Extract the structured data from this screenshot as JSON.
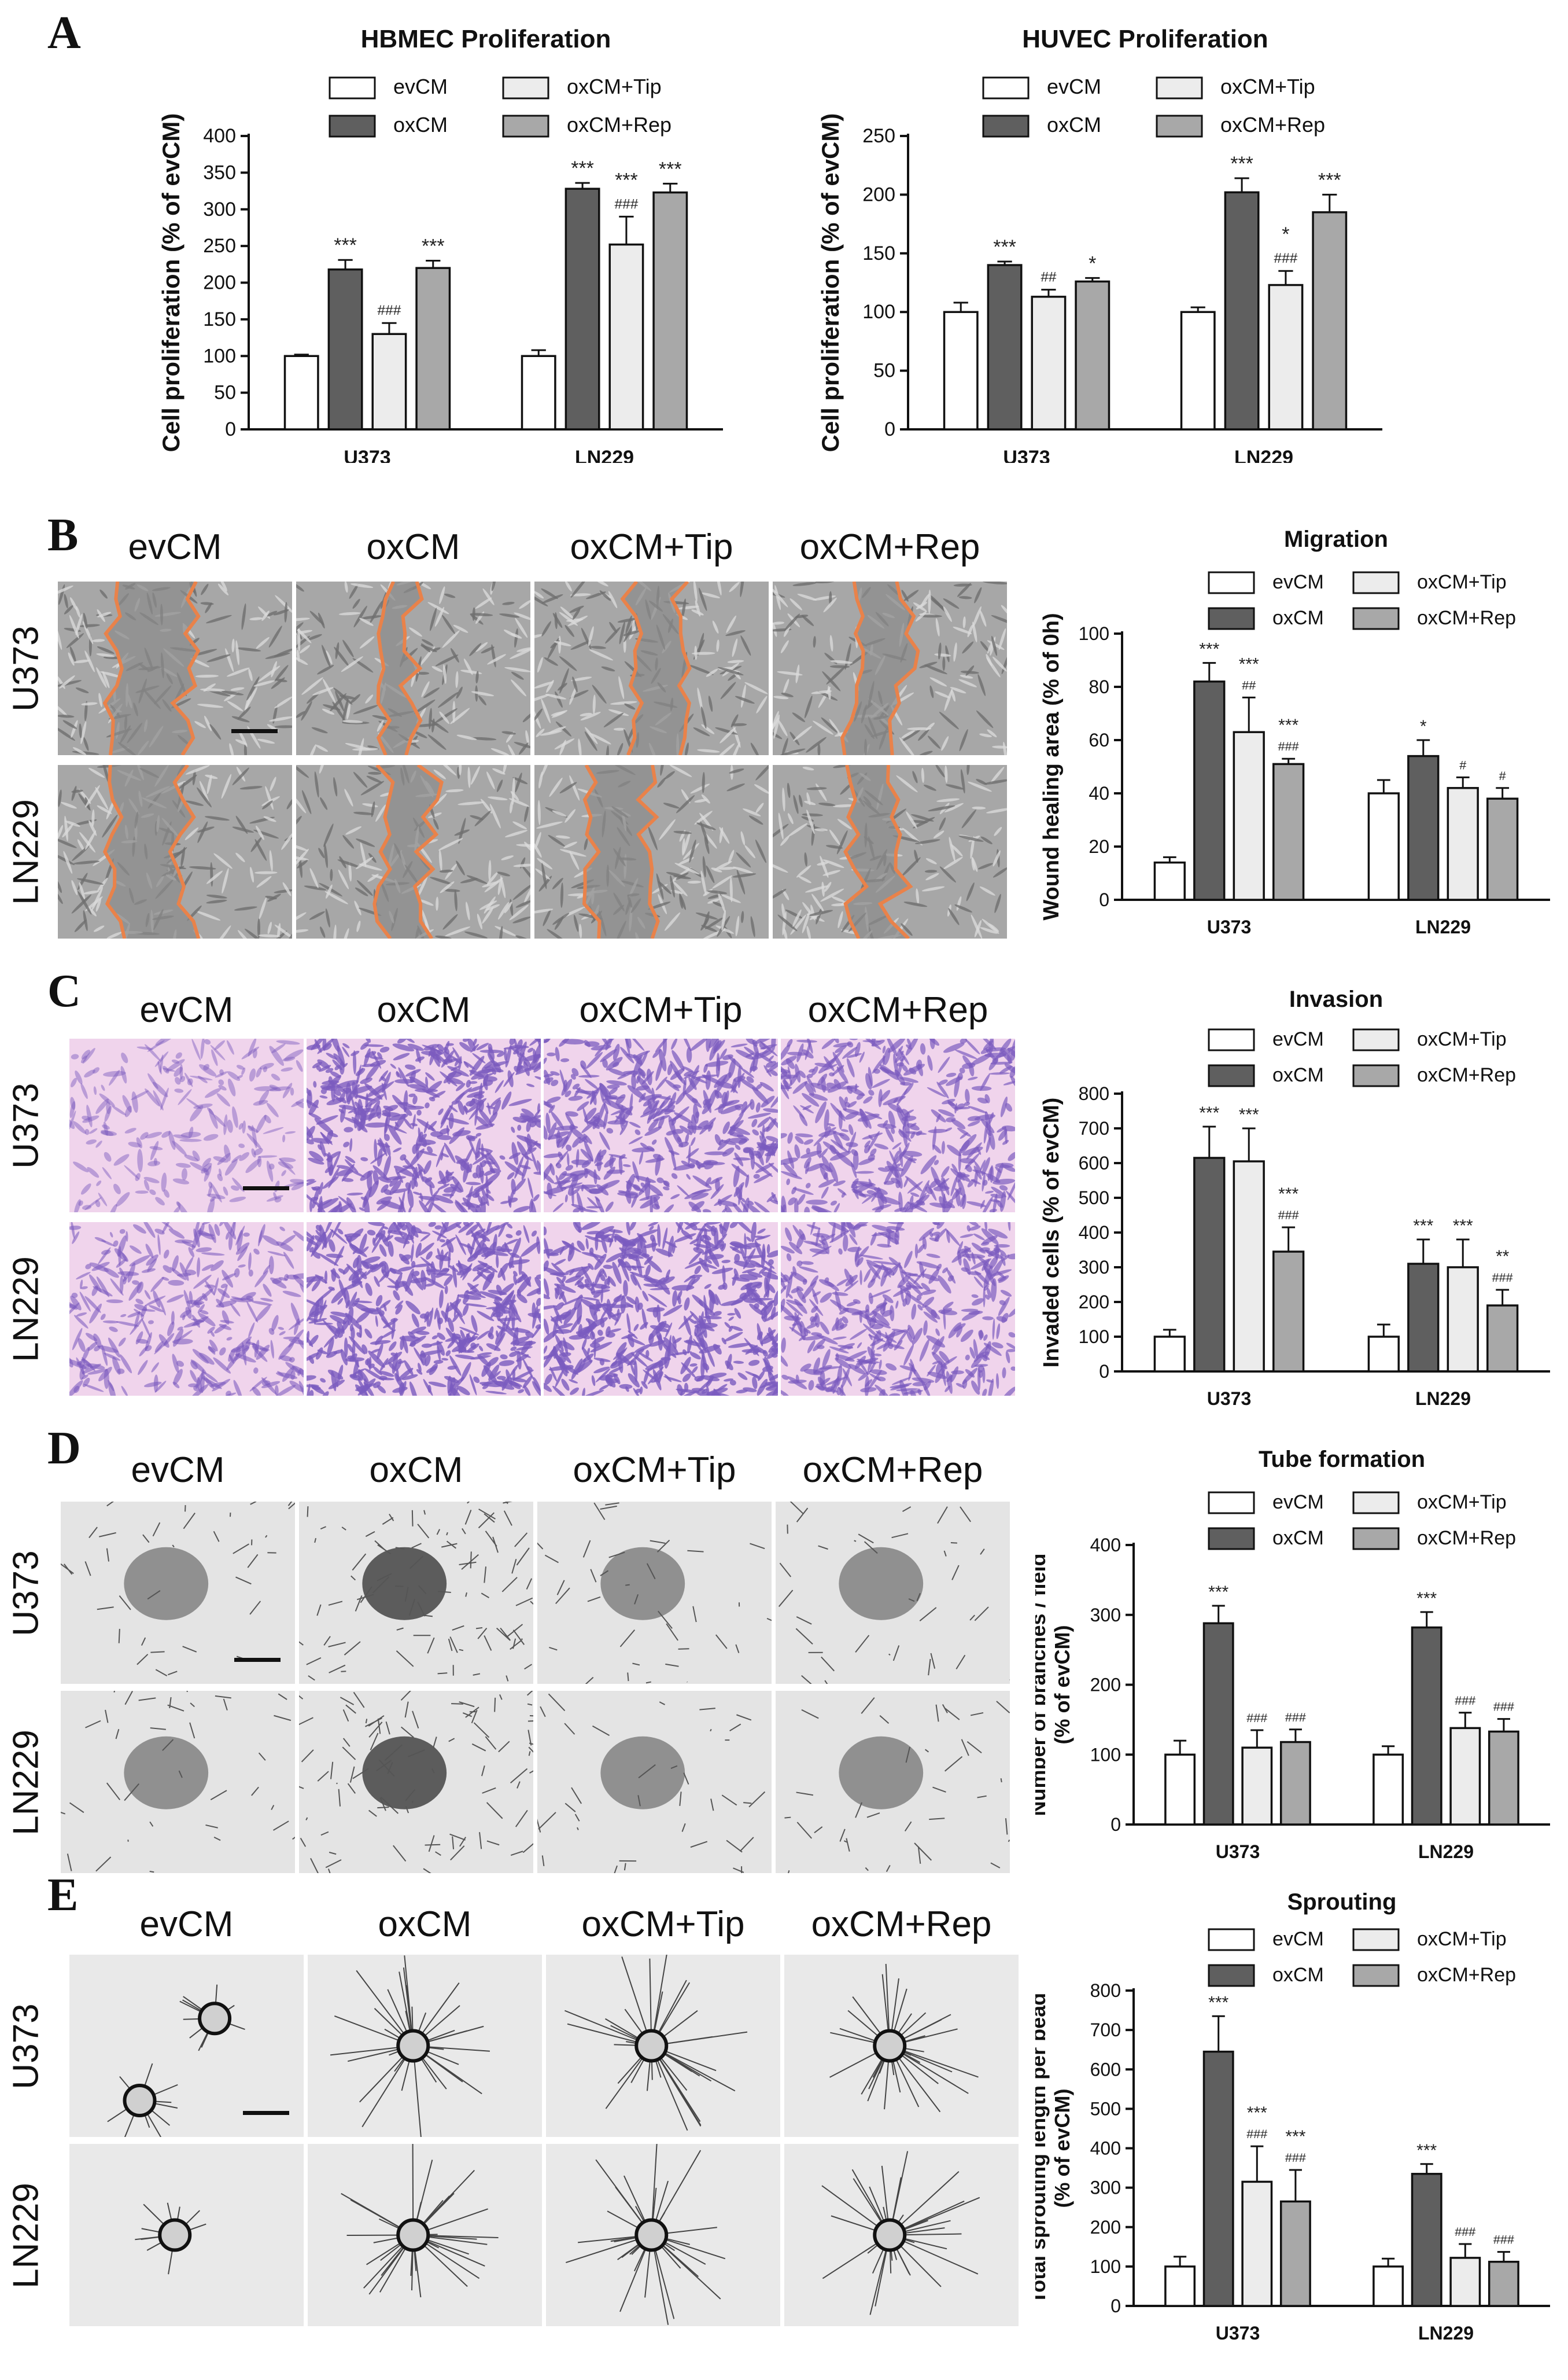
{
  "figure": {
    "panel_letters": [
      "A",
      "B",
      "C",
      "D",
      "E"
    ],
    "image_columns": [
      "evCM",
      "oxCM",
      "oxCM+Tip",
      "oxCM+Rep"
    ],
    "image_rows": [
      "U373",
      "LN229"
    ]
  },
  "colors": {
    "evCM": "#ffffff",
    "oxCM": "#5f5f5f",
    "oxCM+Tip": "#ececec",
    "oxCM+Rep": "#a8a8a8",
    "scratch_outline": "#e9824a",
    "crystal_violet": "#7b5bbf"
  },
  "chart_data": [
    {
      "type": "bar",
      "panel": "A",
      "title": "HBMEC Proliferation",
      "ylabel": "Cell proliferation (% of evCM)",
      "categories": [
        "U373",
        "LN229"
      ],
      "ylim": [
        0,
        400
      ],
      "yticks": [
        0,
        50,
        100,
        150,
        200,
        250,
        300,
        350,
        400
      ],
      "series": [
        {
          "name": "evCM",
          "values": [
            100,
            100
          ],
          "errors": [
            2,
            8
          ],
          "annotations": [
            "",
            ""
          ]
        },
        {
          "name": "oxCM",
          "values": [
            218,
            328
          ],
          "errors": [
            13,
            8
          ],
          "annotations": [
            "***",
            "***"
          ]
        },
        {
          "name": "oxCM+Tip",
          "values": [
            130,
            252
          ],
          "errors": [
            15,
            38
          ],
          "annotations": [
            "###",
            "***\n###"
          ]
        },
        {
          "name": "oxCM+Rep",
          "values": [
            220,
            323
          ],
          "errors": [
            10,
            12
          ],
          "annotations": [
            "***",
            "***"
          ]
        }
      ],
      "legend": "top"
    },
    {
      "type": "bar",
      "panel": "A",
      "title": "HUVEC Proliferation",
      "ylabel": "Cell proliferation (% of evCM)",
      "categories": [
        "U373",
        "LN229"
      ],
      "ylim": [
        0,
        250
      ],
      "yticks": [
        0,
        50,
        100,
        150,
        200,
        250
      ],
      "series": [
        {
          "name": "evCM",
          "values": [
            100,
            100
          ],
          "errors": [
            8,
            4
          ],
          "annotations": [
            "",
            ""
          ]
        },
        {
          "name": "oxCM",
          "values": [
            140,
            202
          ],
          "errors": [
            3,
            12
          ],
          "annotations": [
            "***",
            "***"
          ]
        },
        {
          "name": "oxCM+Tip",
          "values": [
            113,
            123
          ],
          "errors": [
            6,
            12
          ],
          "annotations": [
            "##",
            "*\n###"
          ]
        },
        {
          "name": "oxCM+Rep",
          "values": [
            126,
            185
          ],
          "errors": [
            3,
            15
          ],
          "annotations": [
            "*",
            "***"
          ]
        }
      ],
      "legend": "top"
    },
    {
      "type": "bar",
      "panel": "B",
      "title": "Migration",
      "ylabel": "Wound healing area (% of  0h)",
      "categories": [
        "U373",
        "LN229"
      ],
      "ylim": [
        0,
        100
      ],
      "yticks": [
        0,
        20,
        40,
        60,
        80,
        100
      ],
      "series": [
        {
          "name": "evCM",
          "values": [
            14,
            40
          ],
          "errors": [
            2,
            5
          ],
          "annotations": [
            "",
            ""
          ]
        },
        {
          "name": "oxCM",
          "values": [
            82,
            54
          ],
          "errors": [
            7,
            6
          ],
          "annotations": [
            "***",
            "*"
          ]
        },
        {
          "name": "oxCM+Tip",
          "values": [
            63,
            42
          ],
          "errors": [
            13,
            4
          ],
          "annotations": [
            "***\n##",
            "#"
          ]
        },
        {
          "name": "oxCM+Rep",
          "values": [
            51,
            38
          ],
          "errors": [
            2,
            4
          ],
          "annotations": [
            "***\n###",
            "#"
          ]
        }
      ],
      "legend": "top"
    },
    {
      "type": "bar",
      "panel": "C",
      "title": "Invasion",
      "ylabel": "Invaded cells (% of evCM)",
      "categories": [
        "U373",
        "LN229"
      ],
      "ylim": [
        0,
        800
      ],
      "yticks": [
        0,
        100,
        200,
        300,
        400,
        500,
        600,
        700,
        800
      ],
      "series": [
        {
          "name": "evCM",
          "values": [
            100,
            100
          ],
          "errors": [
            20,
            35
          ],
          "annotations": [
            "",
            ""
          ]
        },
        {
          "name": "oxCM",
          "values": [
            615,
            310
          ],
          "errors": [
            90,
            70
          ],
          "annotations": [
            "***",
            "***"
          ]
        },
        {
          "name": "oxCM+Tip",
          "values": [
            605,
            300
          ],
          "errors": [
            95,
            80
          ],
          "annotations": [
            "***",
            "***"
          ]
        },
        {
          "name": "oxCM+Rep",
          "values": [
            345,
            190
          ],
          "errors": [
            70,
            45
          ],
          "annotations": [
            "***\n###",
            "**\n###"
          ]
        }
      ],
      "legend": "top"
    },
    {
      "type": "bar",
      "panel": "D",
      "title": "Tube formation",
      "ylabel": "Number of branches / field\n(% of evCM)",
      "categories": [
        "U373",
        "LN229"
      ],
      "ylim": [
        0,
        400
      ],
      "yticks": [
        0,
        100,
        200,
        300,
        400
      ],
      "series": [
        {
          "name": "evCM",
          "values": [
            100,
            100
          ],
          "errors": [
            20,
            12
          ],
          "annotations": [
            "",
            ""
          ]
        },
        {
          "name": "oxCM",
          "values": [
            288,
            282
          ],
          "errors": [
            25,
            22
          ],
          "annotations": [
            "***",
            "***"
          ]
        },
        {
          "name": "oxCM+Tip",
          "values": [
            110,
            138
          ],
          "errors": [
            25,
            22
          ],
          "annotations": [
            "###",
            "###"
          ]
        },
        {
          "name": "oxCM+Rep",
          "values": [
            118,
            133
          ],
          "errors": [
            18,
            18
          ],
          "annotations": [
            "###",
            "###"
          ]
        }
      ],
      "legend": "top"
    },
    {
      "type": "bar",
      "panel": "E",
      "title": "Sprouting",
      "ylabel": "Total sprouting length per bead\n(% of evCM)",
      "categories": [
        "U373",
        "LN229"
      ],
      "ylim": [
        0,
        800
      ],
      "yticks": [
        0,
        100,
        200,
        300,
        400,
        500,
        600,
        700,
        800
      ],
      "series": [
        {
          "name": "evCM",
          "values": [
            100,
            100
          ],
          "errors": [
            25,
            20
          ],
          "annotations": [
            "",
            ""
          ]
        },
        {
          "name": "oxCM",
          "values": [
            645,
            335
          ],
          "errors": [
            90,
            25
          ],
          "annotations": [
            "***",
            "***"
          ]
        },
        {
          "name": "oxCM+Tip",
          "values": [
            315,
            122
          ],
          "errors": [
            90,
            35
          ],
          "annotations": [
            "***\n###",
            "###"
          ]
        },
        {
          "name": "oxCM+Rep",
          "values": [
            265,
            112
          ],
          "errors": [
            80,
            25
          ],
          "annotations": [
            "***\n###",
            "###"
          ]
        }
      ],
      "legend": "top"
    }
  ]
}
